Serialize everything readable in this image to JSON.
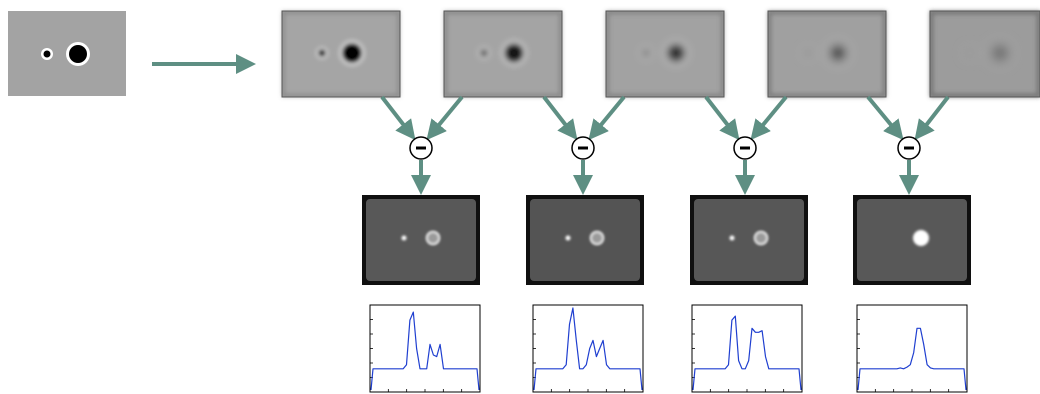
{
  "diagram": {
    "title": "",
    "input_image": {
      "label": "",
      "background": "#a3a3a3",
      "dots": [
        {
          "name": "small-white-ring",
          "ring_color": "#ffffff",
          "core_color": "#000000"
        },
        {
          "name": "large-white-ring",
          "ring_color": "#ffffff",
          "core_color": "#000000"
        }
      ]
    },
    "blur_levels": [
      {
        "label": "",
        "background": "#a5a5a5",
        "dot_darkness": 1.0,
        "vignette": 0.55
      },
      {
        "label": "",
        "background": "#a4a4a4",
        "dot_darkness": 0.9,
        "vignette": 0.6
      },
      {
        "label": "",
        "background": "#a2a2a2",
        "dot_darkness": 0.75,
        "vignette": 0.65
      },
      {
        "label": "",
        "background": "#a0a0a0",
        "dot_darkness": 0.6,
        "vignette": 0.75
      },
      {
        "label": "",
        "background": "#9c9c9c",
        "dot_darkness": 0.45,
        "vignette": 0.85
      }
    ],
    "operator_symbol": "−",
    "differences": [
      {
        "background": "#585858",
        "small_spot": true,
        "large_ring": true
      },
      {
        "background": "#545454",
        "small_spot": true,
        "large_ring": true
      },
      {
        "background": "#575757",
        "small_spot": true,
        "large_ring": true
      },
      {
        "background": "#585858",
        "small_spot": false,
        "large_ring": false,
        "single_blob": true
      }
    ],
    "arrow_color": "#5e8f83",
    "profile_color": "#1f3fd0",
    "profiles": [
      {
        "y": [
          0.25,
          0.25,
          0.25,
          0.25,
          0.25,
          0.25,
          0.25,
          0.25,
          0.25,
          0.25,
          0.3,
          0.85,
          0.95,
          0.5,
          0.25,
          0.25,
          0.25,
          0.55,
          0.42,
          0.4,
          0.55,
          0.25,
          0.25,
          0.25,
          0.25,
          0.25,
          0.25,
          0.25,
          0.25,
          0.25,
          0.25,
          0.25
        ]
      },
      {
        "y": [
          0.25,
          0.25,
          0.25,
          0.25,
          0.25,
          0.25,
          0.25,
          0.25,
          0.25,
          0.3,
          0.8,
          1.0,
          0.6,
          0.25,
          0.25,
          0.3,
          0.5,
          0.6,
          0.4,
          0.5,
          0.6,
          0.3,
          0.25,
          0.25,
          0.25,
          0.25,
          0.25,
          0.25,
          0.25,
          0.25,
          0.25,
          0.25
        ]
      },
      {
        "y": [
          0.25,
          0.25,
          0.25,
          0.25,
          0.25,
          0.25,
          0.25,
          0.25,
          0.25,
          0.25,
          0.3,
          0.85,
          0.9,
          0.35,
          0.25,
          0.25,
          0.35,
          0.75,
          0.7,
          0.7,
          0.72,
          0.4,
          0.25,
          0.25,
          0.25,
          0.25,
          0.25,
          0.25,
          0.25,
          0.25,
          0.25,
          0.25
        ]
      },
      {
        "y": [
          0.25,
          0.25,
          0.25,
          0.25,
          0.25,
          0.25,
          0.25,
          0.25,
          0.25,
          0.25,
          0.25,
          0.25,
          0.26,
          0.25,
          0.27,
          0.3,
          0.45,
          0.75,
          0.75,
          0.55,
          0.3,
          0.26,
          0.25,
          0.25,
          0.25,
          0.25,
          0.25,
          0.25,
          0.25,
          0.25,
          0.25,
          0.25
        ]
      }
    ]
  }
}
